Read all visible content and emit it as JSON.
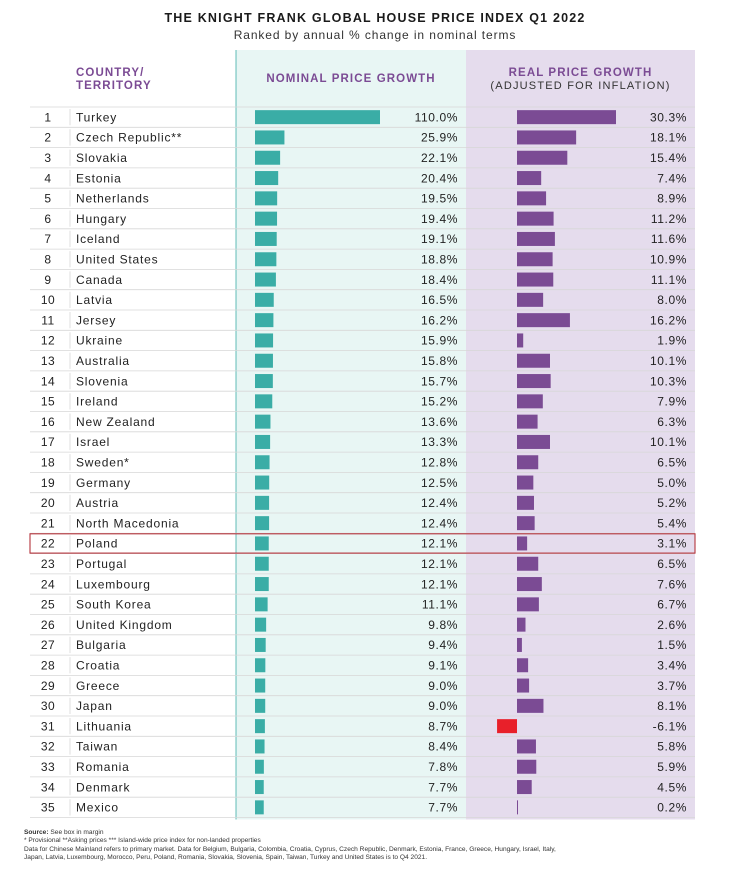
{
  "chart_data": {
    "type": "table",
    "title": "THE KNIGHT FRANK GLOBAL HOUSE PRICE INDEX Q1 2022",
    "subtitle": "Ranked by annual % change in nominal terms",
    "headers": {
      "country": [
        "COUNTRY/",
        "TERRITORY"
      ],
      "nominal": "NOMINAL PRICE GROWTH",
      "real": [
        "REAL PRICE GROWTH",
        "(ADJUSTED FOR INFLATION)"
      ]
    },
    "highlight_rank": 22,
    "colors": {
      "nominal_bar": "#3aada6",
      "nominal_bg": "#e8f6f4",
      "real_bar": "#7b4b94",
      "real_bg": "#e5dced",
      "negative_bar": "#e8202a",
      "header_text": "#7b4b94",
      "highlight": "#b5343c",
      "row_line": "#d7d7d7"
    },
    "rows": [
      {
        "rank": "1",
        "country": "Turkey",
        "nominal": 110.0,
        "real": 30.3
      },
      {
        "rank": "2",
        "country": "Czech Republic**",
        "nominal": 25.9,
        "real": 18.1
      },
      {
        "rank": "3",
        "country": "Slovakia",
        "nominal": 22.1,
        "real": 15.4
      },
      {
        "rank": "4",
        "country": "Estonia",
        "nominal": 20.4,
        "real": 7.4
      },
      {
        "rank": "5",
        "country": "Netherlands",
        "nominal": 19.5,
        "real": 8.9
      },
      {
        "rank": "6",
        "country": "Hungary",
        "nominal": 19.4,
        "real": 11.2
      },
      {
        "rank": "7",
        "country": "Iceland",
        "nominal": 19.1,
        "real": 11.6
      },
      {
        "rank": "8",
        "country": "United States",
        "nominal": 18.8,
        "real": 10.9
      },
      {
        "rank": "9",
        "country": "Canada",
        "nominal": 18.4,
        "real": 11.1
      },
      {
        "rank": "10",
        "country": "Latvia",
        "nominal": 16.5,
        "real": 8.0
      },
      {
        "rank": "11",
        "country": "Jersey",
        "nominal": 16.2,
        "real": 16.2
      },
      {
        "rank": "12",
        "country": "Ukraine",
        "nominal": 15.9,
        "real": 1.9
      },
      {
        "rank": "13",
        "country": "Australia",
        "nominal": 15.8,
        "real": 10.1
      },
      {
        "rank": "14",
        "country": "Slovenia",
        "nominal": 15.7,
        "real": 10.3
      },
      {
        "rank": "15",
        "country": "Ireland",
        "nominal": 15.2,
        "real": 7.9
      },
      {
        "rank": "16",
        "country": "New Zealand",
        "nominal": 13.6,
        "real": 6.3
      },
      {
        "rank": "17",
        "country": "Israel",
        "nominal": 13.3,
        "real": 10.1
      },
      {
        "rank": "18",
        "country": "Sweden*",
        "nominal": 12.8,
        "real": 6.5
      },
      {
        "rank": "19",
        "country": "Germany",
        "nominal": 12.5,
        "real": 5.0
      },
      {
        "rank": "20",
        "country": "Austria",
        "nominal": 12.4,
        "real": 5.2
      },
      {
        "rank": "21",
        "country": "North Macedonia",
        "nominal": 12.4,
        "real": 5.4
      },
      {
        "rank": "22",
        "country": "Poland",
        "nominal": 12.1,
        "real": 3.1
      },
      {
        "rank": "23",
        "country": "Portugal",
        "nominal": 12.1,
        "real": 6.5
      },
      {
        "rank": "24",
        "country": "Luxembourg",
        "nominal": 12.1,
        "real": 7.6
      },
      {
        "rank": "25",
        "country": "South Korea",
        "nominal": 11.1,
        "real": 6.7
      },
      {
        "rank": "26",
        "country": "United Kingdom",
        "nominal": 9.8,
        "real": 2.6
      },
      {
        "rank": "27",
        "country": "Bulgaria",
        "nominal": 9.4,
        "real": 1.5
      },
      {
        "rank": "28",
        "country": "Croatia",
        "nominal": 9.1,
        "real": 3.4
      },
      {
        "rank": "29",
        "country": "Greece",
        "nominal": 9.0,
        "real": 3.7
      },
      {
        "rank": "30",
        "country": "Japan",
        "nominal": 9.0,
        "real": 8.1
      },
      {
        "rank": "31",
        "country": "Lithuania",
        "nominal": 8.7,
        "real": -6.1
      },
      {
        "rank": "32",
        "country": "Taiwan",
        "nominal": 8.4,
        "real": 5.8
      },
      {
        "rank": "33",
        "country": "Romania",
        "nominal": 7.8,
        "real": 5.9
      },
      {
        "rank": "34",
        "country": "Denmark",
        "nominal": 7.7,
        "real": 4.5
      },
      {
        "rank": "35",
        "country": "Mexico",
        "nominal": 7.7,
        "real": 0.2
      }
    ]
  },
  "notes": {
    "source_label": "Source:",
    "source_text": " See box in margin",
    "line2": "* Provisional **Asking prices *** Island-wide price index for non-landed properties",
    "line3": "Data for Chinese Mainland refers to primary market. Data for Belgium, Bulgaria, Colombia, Croatia, Cyprus, Czech Republic, Denmark, Estonia, France, Greece, Hungary, Israel, Italy,",
    "line4": "Japan, Latvia, Luxembourg, Morocco, Peru, Poland, Romania, Slovakia, Slovenia, Spain, Taiwan, Turkey and United States is to Q4 2021."
  }
}
